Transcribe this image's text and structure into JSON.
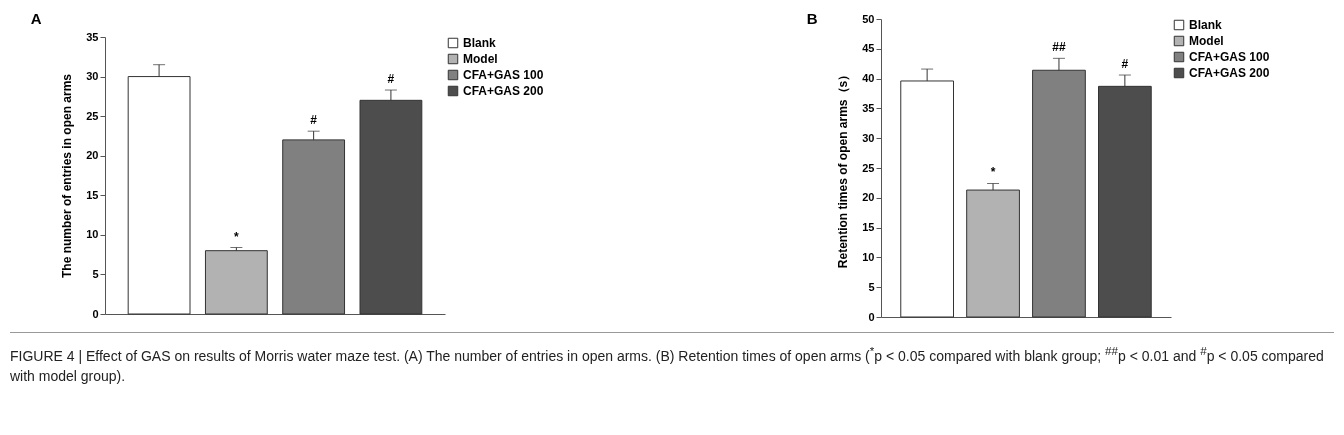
{
  "chart_data": [
    {
      "type": "bar",
      "title": "A",
      "categories": [
        null,
        null,
        null,
        null
      ],
      "ylabel": "The number of entries in open arms",
      "ylim": [
        0,
        35
      ],
      "yticks": [
        0,
        5,
        10,
        15,
        20,
        25,
        30,
        35
      ],
      "grid": false,
      "legend": "top right",
      "tick_labels": "y",
      "series": [
        {
          "name": "Blank",
          "color": "#ffffff",
          "values": [
            30,
            null,
            null,
            null
          ],
          "errors": [
            1.5,
            null,
            null,
            null
          ]
        },
        {
          "name": "Model",
          "color": "#b2b2b2",
          "values": [
            null,
            8,
            null,
            null
          ],
          "errors": [
            null,
            0.4,
            null,
            null
          ]
        },
        {
          "name": "CFA+GAS 100",
          "color": "#808080",
          "values": [
            null,
            null,
            22,
            null
          ],
          "errors": [
            null,
            null,
            1.1,
            null
          ]
        },
        {
          "name": "CFA+GAS 200",
          "color": "#4d4d4d",
          "values": [
            null,
            null,
            null,
            27
          ],
          "errors": [
            null,
            null,
            null,
            1.3
          ]
        }
      ],
      "annotations": [
        "*",
        "#",
        "#"
      ]
    },
    {
      "type": "bar",
      "title": "B",
      "categories": [
        null,
        null,
        null,
        null
      ],
      "ylabel": "Retention times of open arms（s）",
      "ylim": [
        0,
        50
      ],
      "yticks": [
        0,
        5,
        10,
        15,
        20,
        25,
        30,
        35,
        40,
        45,
        50
      ],
      "grid": false,
      "legend": "top right",
      "tick_labels": "y",
      "series": [
        {
          "name": "Blank",
          "color": "#ffffff",
          "values": [
            39.6,
            null,
            null,
            null
          ],
          "errors": [
            2,
            null,
            null,
            null
          ]
        },
        {
          "name": "Model",
          "color": "#b2b2b2",
          "values": [
            null,
            21.3,
            null,
            null
          ],
          "errors": [
            null,
            1.1,
            null,
            null
          ]
        },
        {
          "name": "CFA+GAS 100",
          "color": "#808080",
          "values": [
            null,
            null,
            41.4,
            null
          ],
          "errors": [
            null,
            null,
            2,
            null
          ]
        },
        {
          "name": "CFA+GAS 200",
          "color": "#4d4d4d",
          "values": [
            null,
            null,
            null,
            38.7
          ],
          "errors": [
            null,
            null,
            null,
            1.9
          ]
        }
      ],
      "annotations": [
        "*",
        "##",
        "#",
        "FIGURE 4 | Effect of GAS on results of Morris water maze test. (A) The number of entries in open arms. (B) Retention times of open arms ($^{*}$p < 0.05 compared with blank group; $^{##}$p < 0.01 and $^{#}$p < 0.05 compared with model group)."
      ]
    }
  ]
}
